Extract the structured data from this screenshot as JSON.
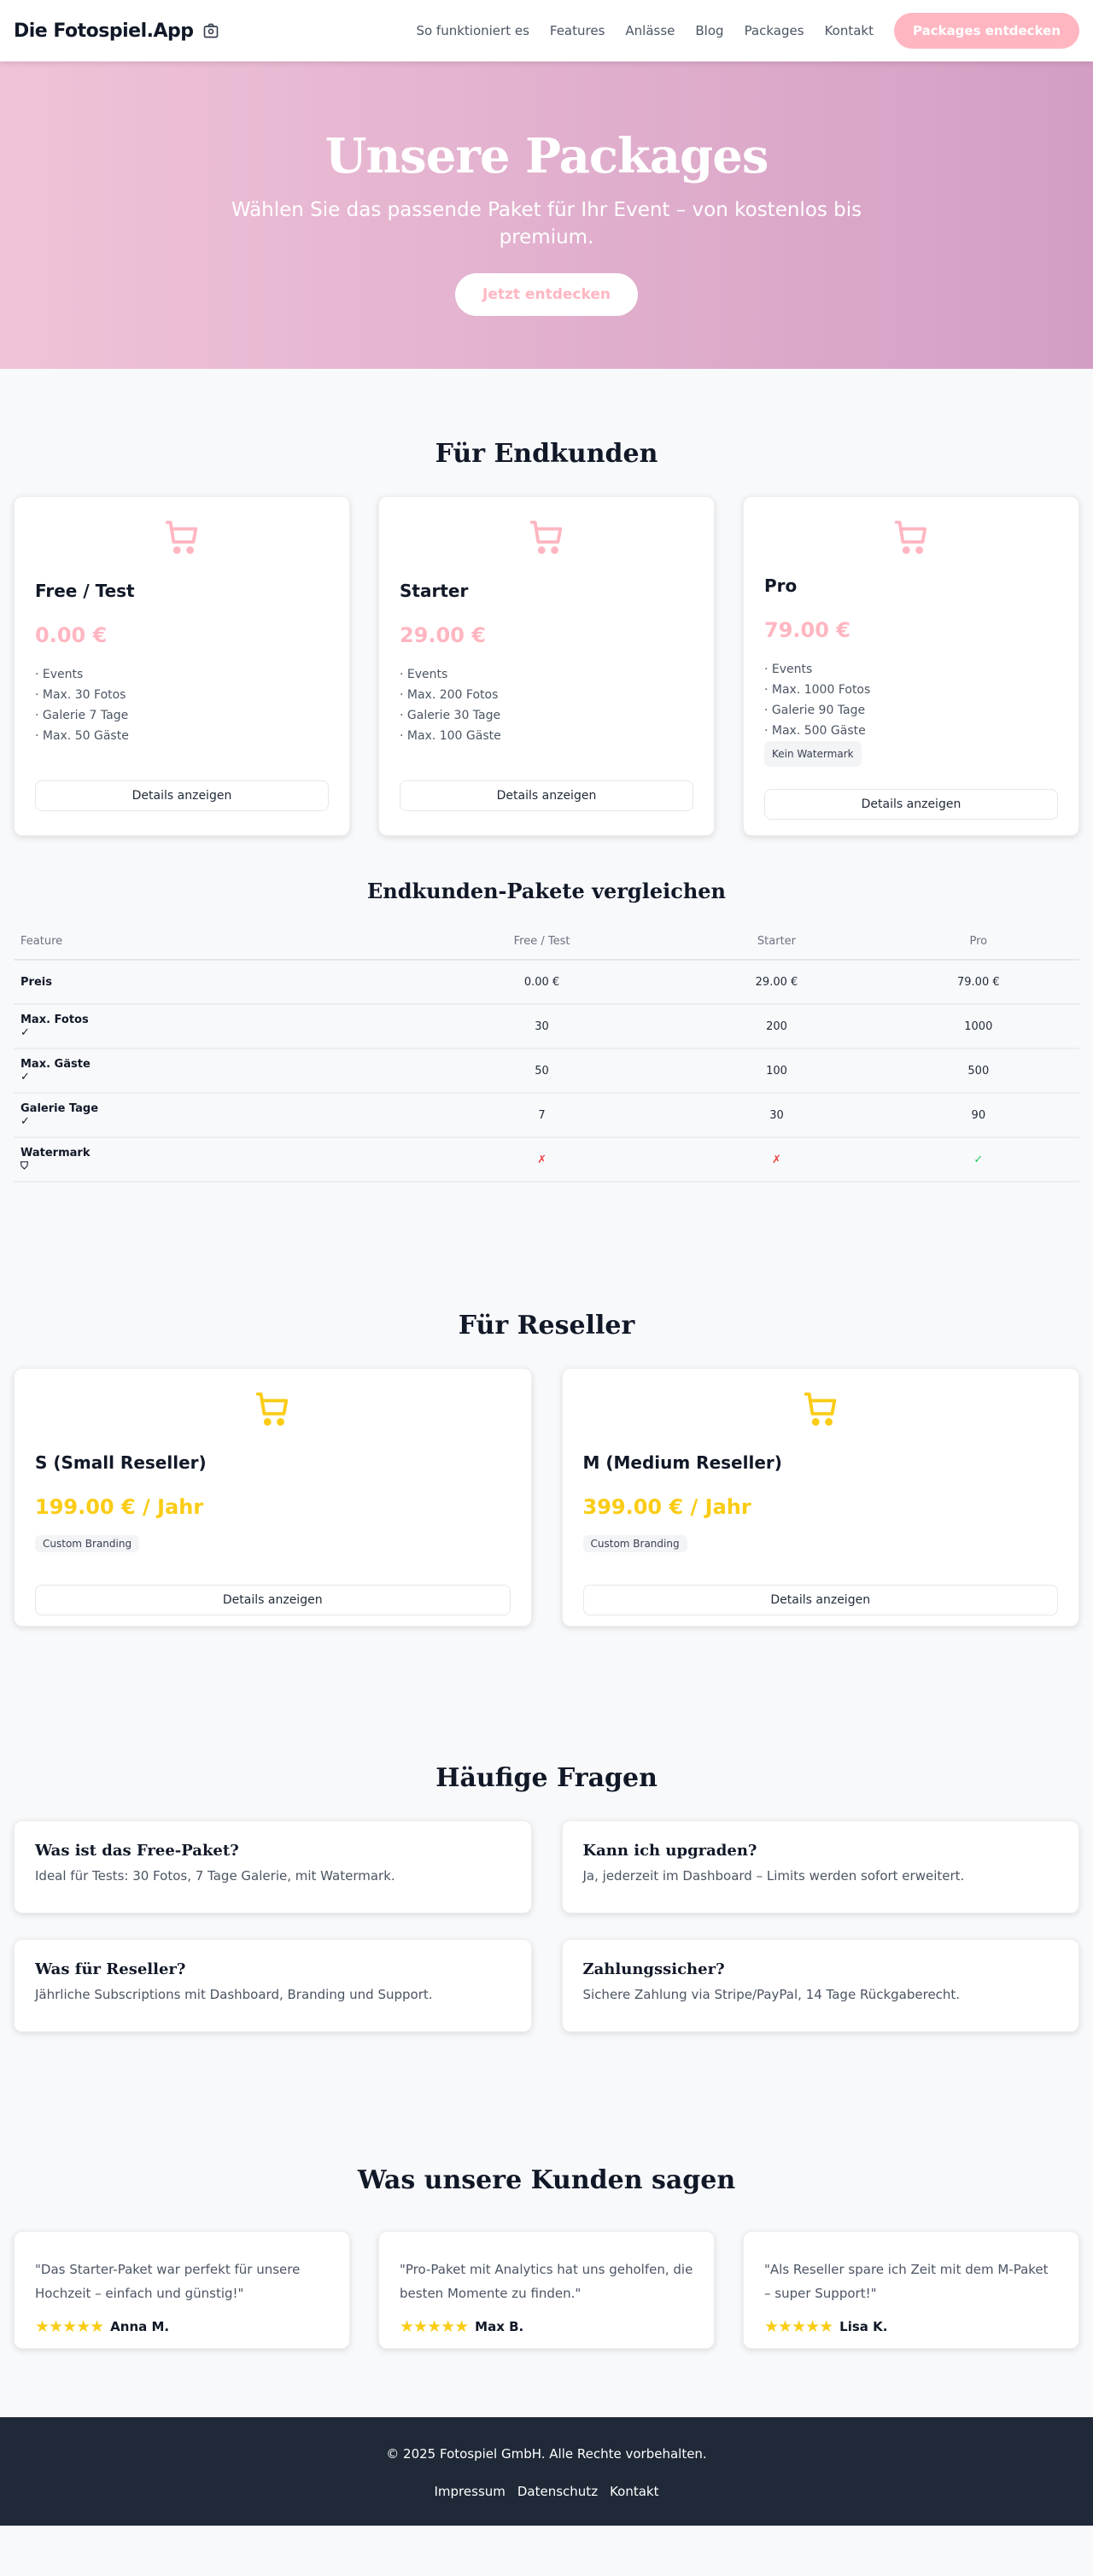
{
  "colors": {
    "accent": "#ffb6c1",
    "reseller": "#facc15",
    "footer": "#1f2937"
  },
  "nav": {
    "logo": "Die Fotospiel.App",
    "links": [
      "So funktioniert es",
      "Features",
      "Anlässe",
      "Blog",
      "Packages",
      "Kontakt"
    ],
    "cta": "Packages entdecken"
  },
  "hero": {
    "title": "Unsere Packages",
    "subtitle": "Wählen Sie das passende Paket für Ihr Event – von kostenlos bis premium.",
    "cta": "Jetzt entdecken"
  },
  "endkunden": {
    "title": "Für Endkunden",
    "cards": [
      {
        "name": "Free / Test",
        "price": "0.00 €",
        "features": [
          "· Events",
          "· Max. 30 Fotos",
          "· Galerie 7 Tage",
          "· Max. 50 Gäste"
        ],
        "button": "Details anzeigen"
      },
      {
        "name": "Starter",
        "price": "29.00 €",
        "features": [
          "· Events",
          "· Max. 200 Fotos",
          "· Galerie 30 Tage",
          "· Max. 100 Gäste"
        ],
        "button": "Details anzeigen"
      },
      {
        "name": "Pro",
        "price": "79.00 €",
        "features": [
          "· Events",
          "· Max. 1000 Fotos",
          "· Galerie 90 Tage",
          "· Max. 500 Gäste"
        ],
        "badge": "Kein Watermark",
        "button": "Details anzeigen"
      }
    ]
  },
  "compare": {
    "title": "Endkunden-Pakete vergleichen",
    "headers": [
      "Feature",
      "Free / Test",
      "Starter",
      "Pro"
    ],
    "rows": [
      {
        "label": "Preis",
        "values": [
          "0.00 €",
          "29.00 €",
          "79.00 €"
        ]
      },
      {
        "label": "Max. Fotos",
        "values": [
          "30",
          "200",
          "1000"
        ]
      },
      {
        "label": "Max. Gäste",
        "values": [
          "50",
          "100",
          "500"
        ]
      },
      {
        "label": "Galerie Tage",
        "values": [
          "7",
          "30",
          "90"
        ]
      },
      {
        "label": "Watermark",
        "values": [
          "✗",
          "✗",
          "✓"
        ]
      }
    ]
  },
  "reseller": {
    "title": "Für Reseller",
    "cards": [
      {
        "name": "S (Small Reseller)",
        "price": "199.00 € / Jahr",
        "badge": "Custom Branding",
        "button": "Details anzeigen"
      },
      {
        "name": "M (Medium Reseller)",
        "price": "399.00 € / Jahr",
        "badge": "Custom Branding",
        "button": "Details anzeigen"
      }
    ]
  },
  "faq": {
    "title": "Häufige Fragen",
    "items": [
      {
        "q": "Was ist das Free-Paket?",
        "a": "Ideal für Tests: 30 Fotos, 7 Tage Galerie, mit Watermark."
      },
      {
        "q": "Kann ich upgraden?",
        "a": "Ja, jederzeit im Dashboard – Limits werden sofort erweitert."
      },
      {
        "q": "Was für Reseller?",
        "a": "Jährliche Subscriptions mit Dashboard, Branding und Support."
      },
      {
        "q": "Zahlungssicher?",
        "a": "Sichere Zahlung via Stripe/PayPal, 14 Tage Rückgaberecht."
      }
    ]
  },
  "testimonials": {
    "title": "Was unsere Kunden sagen",
    "items": [
      {
        "text": "\"Das Starter-Paket war perfekt für unsere Hochzeit – einfach und günstig!\"",
        "name": "Anna M.",
        "rating": 5
      },
      {
        "text": "\"Pro-Paket mit Analytics hat uns geholfen, die besten Momente zu finden.\"",
        "name": "Max B.",
        "rating": 5
      },
      {
        "text": "\"Als Reseller spare ich Zeit mit dem M-Paket – super Support!\"",
        "name": "Lisa K.",
        "rating": 5
      }
    ]
  },
  "footer": {
    "copyright": "© 2025 Fotospiel GmbH. Alle Rechte vorbehalten.",
    "links": [
      "Impressum",
      "Datenschutz",
      "Kontakt"
    ]
  }
}
